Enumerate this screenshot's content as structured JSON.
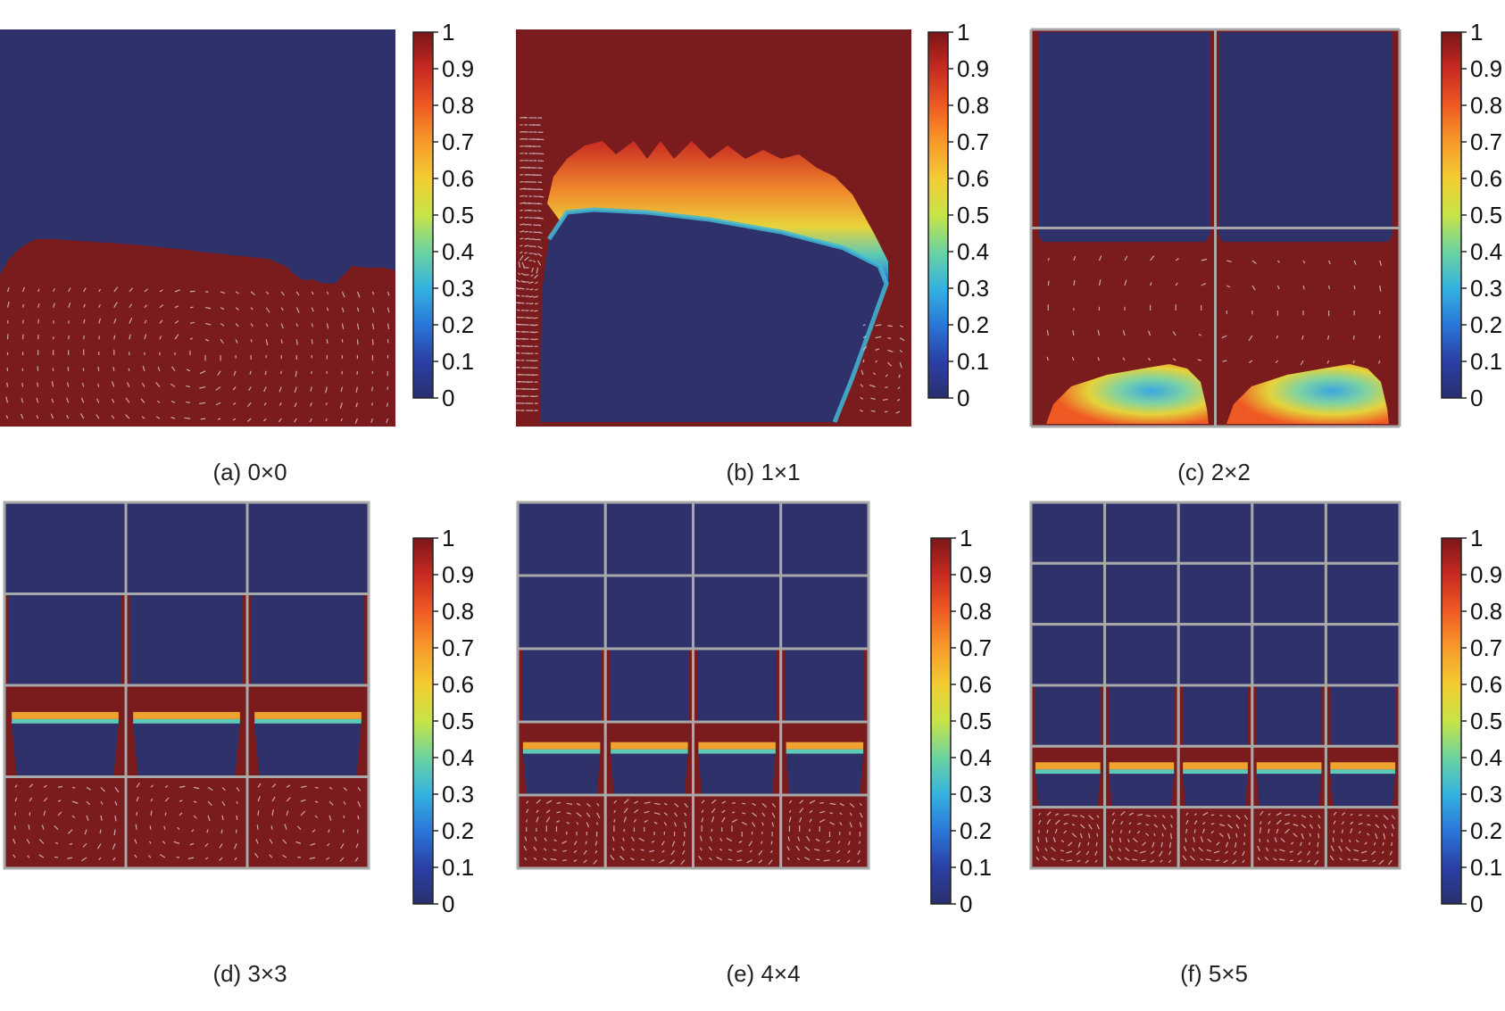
{
  "figure": {
    "colorbar": {
      "ticks": [
        "1",
        "0.9",
        "0.8",
        "0.7",
        "0.6",
        "0.5",
        "0.4",
        "0.3",
        "0.2",
        "0.1",
        "0"
      ],
      "colors": [
        "#2a2f6e",
        "#2b3fa5",
        "#2a77d8",
        "#35b2e0",
        "#6cd3a0",
        "#c7e447",
        "#f3cc33",
        "#f79a2a",
        "#ee5a23",
        "#c82a22",
        "#7a1618"
      ]
    },
    "colors": {
      "blue": "#2e316a",
      "red": "#7a1b1d",
      "grid": "#a8a8a8",
      "arrow": "#e6d6d6"
    },
    "panels": [
      {
        "caption": "(a) 0×0",
        "grid": 0
      },
      {
        "caption": "(b) 1×1",
        "grid": 1
      },
      {
        "caption": "(c) 2×2",
        "grid": 2
      },
      {
        "caption": "(d) 3×3",
        "grid": 3
      },
      {
        "caption": "(e) 4×4",
        "grid": 4
      },
      {
        "caption": "(f) 5×5",
        "grid": 5
      }
    ]
  }
}
